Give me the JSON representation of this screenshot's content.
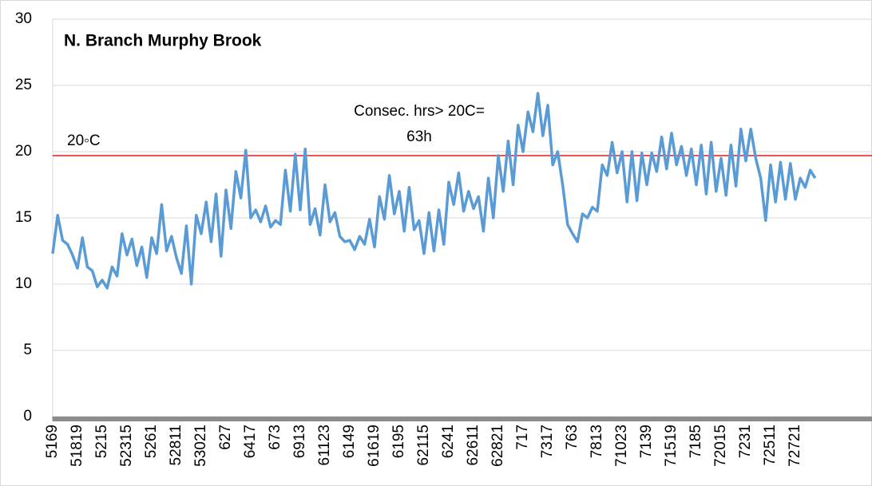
{
  "chart_data": {
    "type": "line",
    "title": "N. Branch Murphy Brook",
    "annotation": [
      "Consec. hrs> 20C=",
      "63h"
    ],
    "reference_line": {
      "value": 19.7,
      "label": "20◦C",
      "color": "#e31a1c"
    },
    "color": "#5b9bd5",
    "grid": true,
    "ylim": [
      0,
      30
    ],
    "yticks": [
      0,
      5,
      10,
      15,
      20,
      25,
      30
    ],
    "categories": [
      "5169",
      null,
      null,
      null,
      null,
      "51819",
      null,
      null,
      null,
      null,
      "5215",
      null,
      null,
      null,
      null,
      "52315",
      null,
      null,
      null,
      null,
      "5261",
      null,
      null,
      null,
      null,
      "52811",
      null,
      null,
      null,
      null,
      "53021",
      null,
      null,
      null,
      null,
      "627",
      null,
      null,
      null,
      null,
      "6417",
      null,
      null,
      null,
      null,
      "673",
      null,
      null,
      null,
      null,
      "6913",
      null,
      null,
      null,
      null,
      "61123",
      null,
      null,
      null,
      null,
      "6149",
      null,
      null,
      null,
      null,
      "61619",
      null,
      null,
      null,
      null,
      "6195",
      null,
      null,
      null,
      null,
      "62115",
      null,
      null,
      null,
      null,
      "6241",
      null,
      null,
      null,
      null,
      "62611",
      null,
      null,
      null,
      null,
      "62821",
      null,
      null,
      null,
      null,
      "717",
      null,
      null,
      null,
      null,
      "7317",
      null,
      null,
      null,
      null,
      "763",
      null,
      null,
      null,
      null,
      "7813",
      null,
      null,
      null,
      null,
      "71023",
      null,
      null,
      null,
      null,
      "7139",
      null,
      null,
      null,
      null,
      "71519",
      null,
      null,
      null,
      null,
      "7185",
      null,
      null,
      null,
      null,
      "72015",
      null,
      null,
      null,
      null,
      "7231",
      null,
      null,
      null,
      null,
      "72511",
      null,
      null,
      null,
      null,
      "72721",
      null,
      null,
      null,
      null
    ],
    "values": [
      12.3,
      15.2,
      13.3,
      13.0,
      12.2,
      11.2,
      13.5,
      11.3,
      11.0,
      9.8,
      10.3,
      9.7,
      11.3,
      10.6,
      13.8,
      12.2,
      13.4,
      11.4,
      12.8,
      10.5,
      13.5,
      12.3,
      16.0,
      12.5,
      13.6,
      12.0,
      10.8,
      14.4,
      10.0,
      15.2,
      13.8,
      16.2,
      13.2,
      16.8,
      12.1,
      17.1,
      14.2,
      18.5,
      16.5,
      20.1,
      15.0,
      15.6,
      14.7,
      15.9,
      14.3,
      14.8,
      14.5,
      18.6,
      15.5,
      19.8,
      15.6,
      20.2,
      14.5,
      15.7,
      13.7,
      17.5,
      14.7,
      15.4,
      13.6,
      13.2,
      13.3,
      12.6,
      13.6,
      13.0,
      14.9,
      12.8,
      16.6,
      14.9,
      18.2,
      15.3,
      17.0,
      14.0,
      17.3,
      14.1,
      14.8,
      12.3,
      15.4,
      12.5,
      15.6,
      13.0,
      17.7,
      16.0,
      18.4,
      15.5,
      17.0,
      15.7,
      16.6,
      14.0,
      18.0,
      15.0,
      19.7,
      17.0,
      20.8,
      17.5,
      22.0,
      20.0,
      23.0,
      21.5,
      24.4,
      21.2,
      23.5,
      19.0,
      20.0,
      17.5,
      14.5,
      13.8,
      13.2,
      15.3,
      15.0,
      15.8,
      15.5,
      19.0,
      18.2,
      20.7,
      18.4,
      20.0,
      16.2,
      20.0,
      16.3,
      19.9,
      17.5,
      19.9,
      18.5,
      21.1,
      18.7,
      21.4,
      19.0,
      20.4,
      18.2,
      20.2,
      17.5,
      20.5,
      16.8,
      20.7,
      17.0,
      19.5,
      16.7,
      20.5,
      17.4,
      21.7,
      19.3,
      21.7,
      19.5,
      18.0,
      14.8,
      19.0,
      16.2,
      19.2,
      16.4,
      19.1,
      16.4,
      18.0,
      17.3,
      18.6,
      18.0
    ]
  }
}
